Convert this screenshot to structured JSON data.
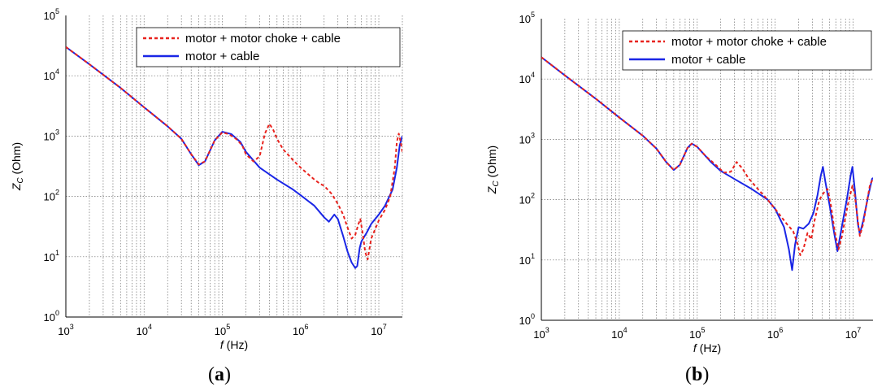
{
  "panels": [
    {
      "caption": {
        "open": "(",
        "letter": "a",
        "close": ")"
      },
      "chart_data": {
        "type": "line",
        "xscale": "log",
        "yscale": "log",
        "xlim": [
          1000,
          20000000
        ],
        "ylim": [
          1,
          100000
        ],
        "x_ticks": [
          {
            "base": "10",
            "exp": "3"
          },
          {
            "base": "10",
            "exp": "4"
          },
          {
            "base": "10",
            "exp": "5"
          },
          {
            "base": "10",
            "exp": "6"
          },
          {
            "base": "10",
            "exp": "7"
          }
        ],
        "y_ticks": [
          {
            "base": "10",
            "exp": "0"
          },
          {
            "base": "10",
            "exp": "1"
          },
          {
            "base": "10",
            "exp": "2"
          },
          {
            "base": "10",
            "exp": "3"
          },
          {
            "base": "10",
            "exp": "4"
          },
          {
            "base": "10",
            "exp": "5"
          }
        ],
        "xlabel": {
          "var": "f",
          "unit": "(Hz)"
        },
        "ylabel": {
          "var": "Z",
          "sub": "C",
          "unit": "(Ohm)"
        },
        "grid": true,
        "legend_position": "top-right",
        "series": [
          {
            "name": "motor + motor choke + cable",
            "color": "#e8231e",
            "dash": "dashed",
            "points": [
              [
                1000,
                30000
              ],
              [
                2000,
                15500
              ],
              [
                5000,
                6300
              ],
              [
                10000,
                3000
              ],
              [
                20000,
                1450
              ],
              [
                30000,
                900
              ],
              [
                40000,
                500
              ],
              [
                50000,
                340
              ],
              [
                60000,
                380
              ],
              [
                80000,
                850
              ],
              [
                100000,
                1150
              ],
              [
                120000,
                1080
              ],
              [
                150000,
                900
              ],
              [
                180000,
                700
              ],
              [
                200000,
                500
              ],
              [
                250000,
                380
              ],
              [
                300000,
                460
              ],
              [
                350000,
                1100
              ],
              [
                400000,
                1600
              ],
              [
                450000,
                1250
              ],
              [
                500000,
                900
              ],
              [
                600000,
                600
              ],
              [
                800000,
                400
              ],
              [
                1000000,
                300
              ],
              [
                1500000,
                190
              ],
              [
                1800000,
                160
              ],
              [
                2000000,
                150
              ],
              [
                2500000,
                110
              ],
              [
                3000000,
                75
              ],
              [
                3500000,
                50
              ],
              [
                4000000,
                30
              ],
              [
                4500000,
                20
              ],
              [
                5000000,
                23
              ],
              [
                5500000,
                35
              ],
              [
                5800000,
                42
              ],
              [
                6200000,
                25
              ],
              [
                6700000,
                12
              ],
              [
                7200000,
                9
              ],
              [
                8000000,
                20
              ],
              [
                10000000,
                40
              ],
              [
                12000000,
                60
              ],
              [
                14000000,
                100
              ],
              [
                16000000,
                300
              ],
              [
                17000000,
                800
              ],
              [
                18000000,
                1100
              ],
              [
                19000000,
                800
              ],
              [
                20000000,
                550
              ]
            ]
          },
          {
            "name": "motor + cable",
            "color": "#1a26e6",
            "dash": "solid",
            "points": [
              [
                1000,
                30000
              ],
              [
                2000,
                15500
              ],
              [
                5000,
                6300
              ],
              [
                10000,
                3000
              ],
              [
                20000,
                1450
              ],
              [
                30000,
                900
              ],
              [
                40000,
                500
              ],
              [
                50000,
                330
              ],
              [
                60000,
                380
              ],
              [
                80000,
                850
              ],
              [
                100000,
                1180
              ],
              [
                130000,
                1080
              ],
              [
                170000,
                800
              ],
              [
                200000,
                550
              ],
              [
                300000,
                300
              ],
              [
                500000,
                190
              ],
              [
                800000,
                130
              ],
              [
                1000000,
                105
              ],
              [
                1500000,
                70
              ],
              [
                2000000,
                45
              ],
              [
                2300000,
                38
              ],
              [
                2700000,
                50
              ],
              [
                3000000,
                42
              ],
              [
                3500000,
                22
              ],
              [
                4000000,
                12
              ],
              [
                4500000,
                8
              ],
              [
                5000000,
                6.5
              ],
              [
                5300000,
                7
              ],
              [
                5700000,
                14
              ],
              [
                6000000,
                18
              ],
              [
                7000000,
                25
              ],
              [
                8000000,
                35
              ],
              [
                10000000,
                50
              ],
              [
                12000000,
                70
              ],
              [
                15000000,
                130
              ],
              [
                17000000,
                300
              ],
              [
                18500000,
                700
              ],
              [
                20000000,
                1000
              ]
            ]
          }
        ]
      }
    },
    {
      "caption": {
        "open": "(",
        "letter": "b",
        "close": ")"
      },
      "chart_data": {
        "type": "line",
        "xscale": "log",
        "yscale": "log",
        "xlim": [
          1000,
          18000000
        ],
        "ylim": [
          1,
          100000
        ],
        "x_ticks": [
          {
            "base": "10",
            "exp": "3"
          },
          {
            "base": "10",
            "exp": "4"
          },
          {
            "base": "10",
            "exp": "5"
          },
          {
            "base": "10",
            "exp": "6"
          },
          {
            "base": "10",
            "exp": "7"
          }
        ],
        "y_ticks": [
          {
            "base": "10",
            "exp": "0"
          },
          {
            "base": "10",
            "exp": "1"
          },
          {
            "base": "10",
            "exp": "2"
          },
          {
            "base": "10",
            "exp": "3"
          },
          {
            "base": "10",
            "exp": "4"
          },
          {
            "base": "10",
            "exp": "5"
          }
        ],
        "xlabel": {
          "var": "f",
          "unit": "(Hz)"
        },
        "ylabel": {
          "var": "Z",
          "sub": "C",
          "unit": "(Ohm)"
        },
        "grid": true,
        "legend_position": "top-right",
        "series": [
          {
            "name": "motor + motor choke + cable",
            "color": "#e8231e",
            "dash": "dashed",
            "points": [
              [
                1000,
                23000
              ],
              [
                2000,
                11500
              ],
              [
                5000,
                4700
              ],
              [
                10000,
                2300
              ],
              [
                20000,
                1150
              ],
              [
                30000,
                700
              ],
              [
                40000,
                420
              ],
              [
                50000,
                310
              ],
              [
                60000,
                380
              ],
              [
                75000,
                720
              ],
              [
                85000,
                850
              ],
              [
                100000,
                750
              ],
              [
                130000,
                520
              ],
              [
                180000,
                360
              ],
              [
                220000,
                280
              ],
              [
                270000,
                290
              ],
              [
                320000,
                420
              ],
              [
                380000,
                330
              ],
              [
                450000,
                230
              ],
              [
                600000,
                150
              ],
              [
                800000,
                100
              ],
              [
                1000000,
                70
              ],
              [
                1400000,
                40
              ],
              [
                1700000,
                30
              ],
              [
                1900000,
                20
              ],
              [
                2100000,
                12
              ],
              [
                2300000,
                15
              ],
              [
                2600000,
                28
              ],
              [
                2900000,
                22
              ],
              [
                3200000,
                45
              ],
              [
                3700000,
                100
              ],
              [
                4200000,
                130
              ],
              [
                4700000,
                150
              ],
              [
                5200000,
                80
              ],
              [
                5800000,
                30
              ],
              [
                6500000,
                15
              ],
              [
                7200000,
                25
              ],
              [
                8500000,
                80
              ],
              [
                9800000,
                170
              ],
              [
                10500000,
                120
              ],
              [
                11500000,
                45
              ],
              [
                12200000,
                25
              ],
              [
                13500000,
                40
              ],
              [
                15000000,
                90
              ],
              [
                16500000,
                180
              ],
              [
                18000000,
                220
              ]
            ]
          },
          {
            "name": "motor + cable",
            "color": "#1a26e6",
            "dash": "solid",
            "points": [
              [
                1000,
                23000
              ],
              [
                2000,
                11500
              ],
              [
                5000,
                4700
              ],
              [
                10000,
                2300
              ],
              [
                20000,
                1150
              ],
              [
                30000,
                700
              ],
              [
                40000,
                420
              ],
              [
                50000,
                310
              ],
              [
                60000,
                380
              ],
              [
                75000,
                720
              ],
              [
                85000,
                850
              ],
              [
                100000,
                750
              ],
              [
                150000,
                420
              ],
              [
                200000,
                300
              ],
              [
                300000,
                220
              ],
              [
                500000,
                150
              ],
              [
                800000,
                100
              ],
              [
                1000000,
                70
              ],
              [
                1300000,
                35
              ],
              [
                1500000,
                15
              ],
              [
                1650000,
                6.8
              ],
              [
                1800000,
                18
              ],
              [
                2000000,
                35
              ],
              [
                2300000,
                33
              ],
              [
                2700000,
                40
              ],
              [
                3100000,
                60
              ],
              [
                3500000,
                120
              ],
              [
                3850000,
                250
              ],
              [
                4100000,
                350
              ],
              [
                4400000,
                200
              ],
              [
                5000000,
                80
              ],
              [
                5800000,
                25
              ],
              [
                6300000,
                14
              ],
              [
                7000000,
                30
              ],
              [
                8300000,
                100
              ],
              [
                9300000,
                250
              ],
              [
                9800000,
                350
              ],
              [
                10500000,
                150
              ],
              [
                11500000,
                40
              ],
              [
                12200000,
                27
              ],
              [
                13500000,
                45
              ],
              [
                15500000,
                110
              ],
              [
                17500000,
                220
              ],
              [
                18000000,
                230
              ]
            ]
          }
        ]
      }
    }
  ]
}
